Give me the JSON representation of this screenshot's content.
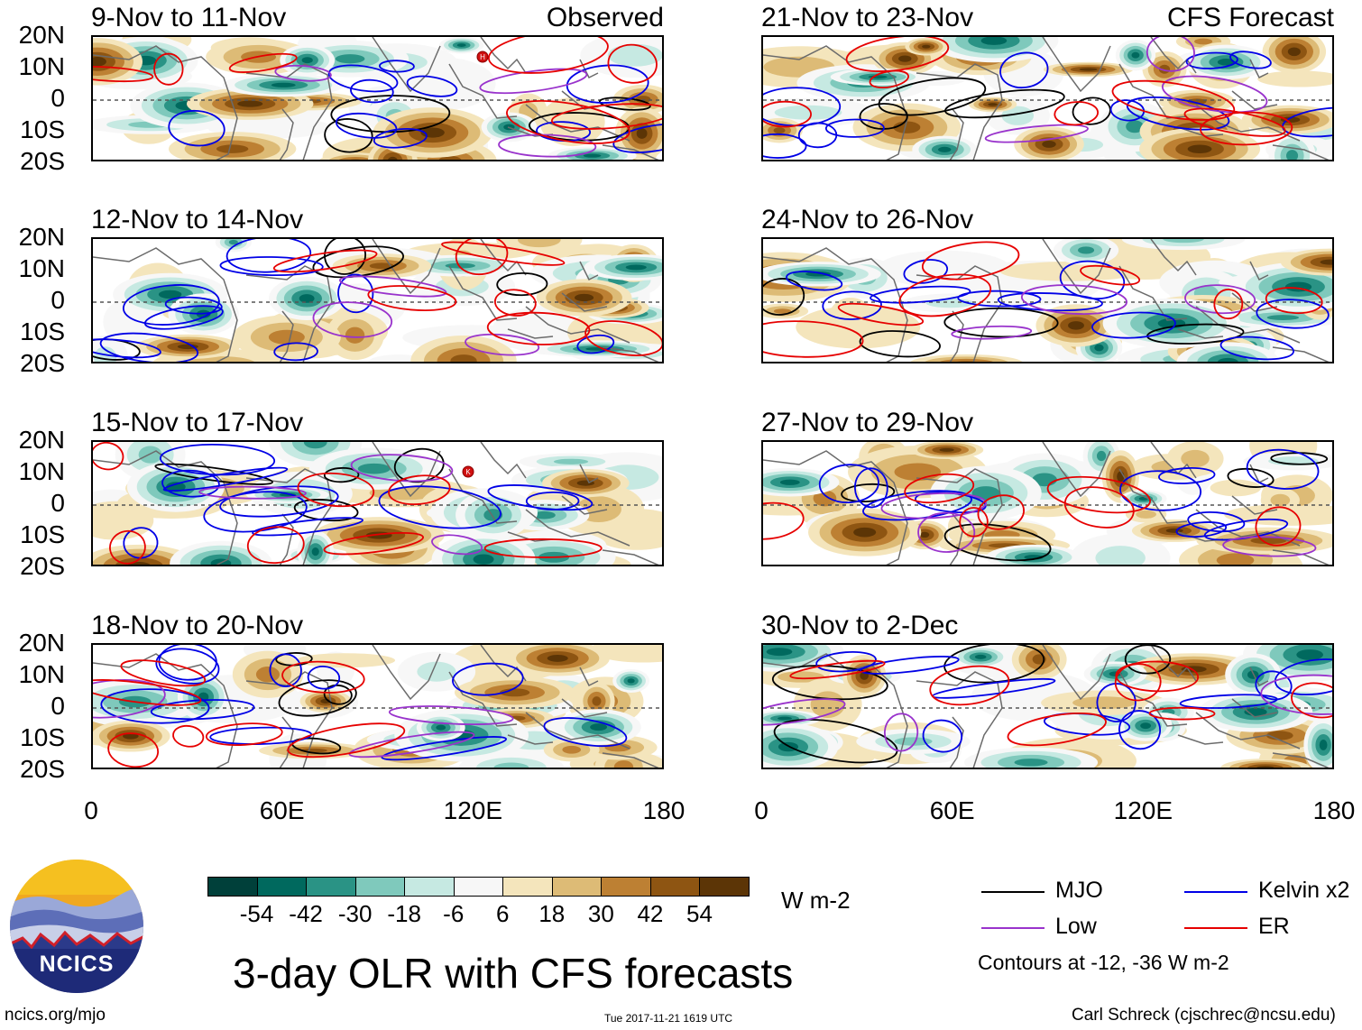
{
  "chart_data": {
    "type": "heatmap",
    "title": "3-day OLR with CFS forecasts",
    "units": "W m-2",
    "panels": [
      {
        "title": "9-Nov to 11-Nov",
        "label": "Observed",
        "column": "left",
        "row": 0,
        "storms": [
          "H"
        ]
      },
      {
        "title": "12-Nov to 14-Nov",
        "label": "",
        "column": "left",
        "row": 1,
        "storms": []
      },
      {
        "title": "15-Nov to 17-Nov",
        "label": "",
        "column": "left",
        "row": 2,
        "storms": [
          "K"
        ]
      },
      {
        "title": "18-Nov to 20-Nov",
        "label": "",
        "column": "left",
        "row": 3,
        "storms": []
      },
      {
        "title": "21-Nov to 23-Nov",
        "label": "CFS Forecast",
        "column": "right",
        "row": 0,
        "storms": []
      },
      {
        "title": "24-Nov to 26-Nov",
        "label": "",
        "column": "right",
        "row": 1,
        "storms": []
      },
      {
        "title": "27-Nov to 29-Nov",
        "label": "",
        "column": "right",
        "row": 2,
        "storms": []
      },
      {
        "title": "30-Nov to 2-Dec",
        "label": "",
        "column": "right",
        "row": 3,
        "storms": []
      }
    ],
    "y_ticks": [
      "20N",
      "10N",
      "0",
      "10S",
      "20S"
    ],
    "x_ticks": [
      "0",
      "60E",
      "120E",
      "180"
    ],
    "xlim": [
      0,
      180
    ],
    "ylim": [
      -20,
      20
    ],
    "colorbar": {
      "labels": [
        "-54",
        "-42",
        "-30",
        "-18",
        "-6",
        "6",
        "18",
        "30",
        "42",
        "54"
      ],
      "colors": [
        "#00403a",
        "#00695e",
        "#2a9385",
        "#7fc9bc",
        "#c6e9e2",
        "#f7f7f7",
        "#f4e5bc",
        "#ddbb76",
        "#bd8033",
        "#8e5512",
        "#5c3506"
      ],
      "units": "W m-2"
    },
    "legend": [
      {
        "name": "MJO",
        "color": "#000000"
      },
      {
        "name": "Kelvin x2",
        "color": "#0000e6"
      },
      {
        "name": "Low",
        "color": "#9933cc"
      },
      {
        "name": "ER",
        "color": "#e60000"
      }
    ],
    "contour_note": "Contours at -12, -36 W m-2"
  },
  "footer": {
    "logo_text": "NCICS",
    "site": "ncics.org/mjo",
    "timestamp": "Tue 2017-11-21 1619 UTC",
    "credit": "Carl Schreck (cjschrec@ncsu.edu)"
  }
}
